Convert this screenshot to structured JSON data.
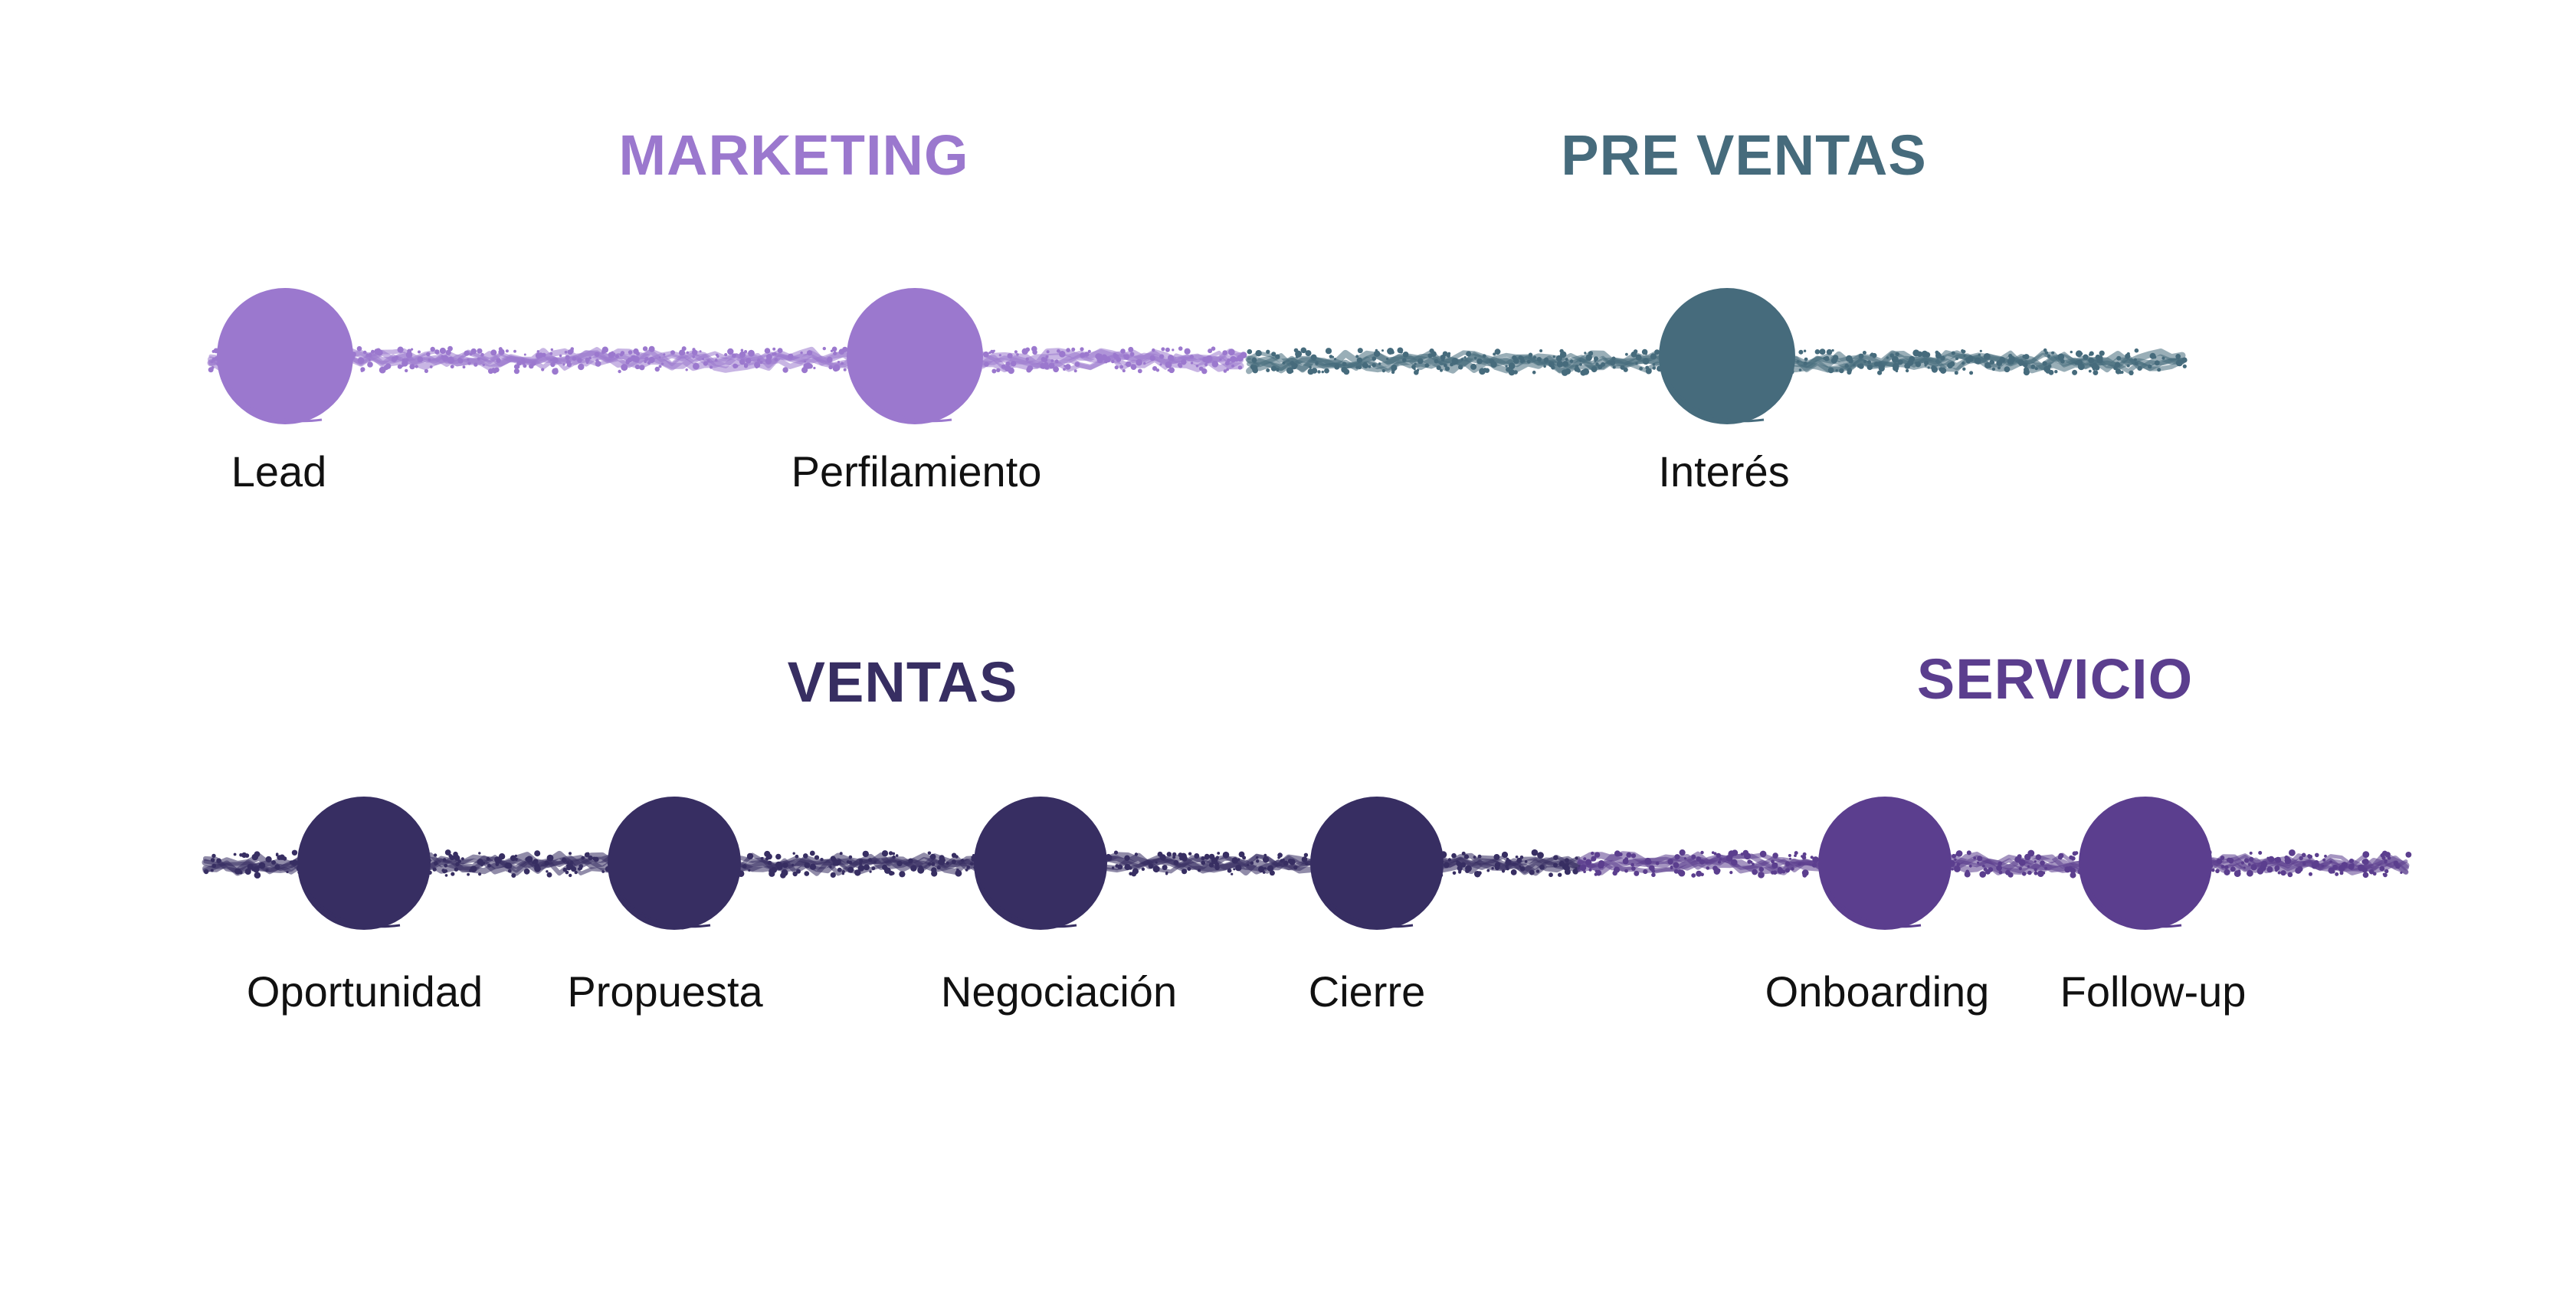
{
  "colors": {
    "marketing": "#9b78ce",
    "preventas": "#466b7c",
    "ventas": "#372e62",
    "servicio": "#5b3e8e",
    "label_text": "#111111"
  },
  "phases": {
    "marketing": "MARKETING",
    "preventas": "PRE VENTAS",
    "ventas": "VENTAS",
    "servicio": "SERVICIO"
  },
  "stages": {
    "lead": "Lead",
    "perfilamiento": "Perfilamiento",
    "interes": "Interés",
    "oportunidad": "Oportunidad",
    "propuesta": "Propuesta",
    "negociacion": "Negociación",
    "cierre": "Cierre",
    "onboarding": "Onboarding",
    "followup": "Follow-up"
  }
}
